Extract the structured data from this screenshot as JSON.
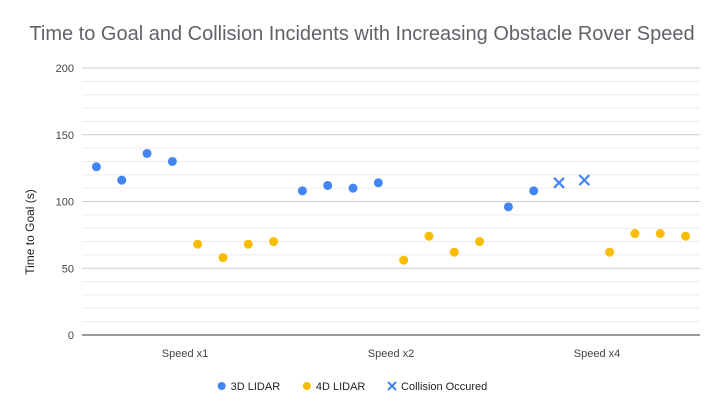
{
  "chart_data": {
    "type": "scatter",
    "title": "Time to Goal and Collision Incidents with Increasing Obstacle Rover Speed",
    "xlabel": "",
    "ylabel": "Time to Goal (s)",
    "ylim": [
      0,
      200
    ],
    "yticks": [
      0,
      50,
      100,
      150,
      200
    ],
    "categories": [
      "Speed x1",
      "Speed x2",
      "Speed x4"
    ],
    "grid": true,
    "legend_position": "bottom",
    "points_per_group": 8,
    "series": [
      {
        "name": "3D LIDAR",
        "color": "#4285f4",
        "marker": "circle",
        "points": [
          {
            "group": 0,
            "slot": 0,
            "y": 126
          },
          {
            "group": 0,
            "slot": 1,
            "y": 116
          },
          {
            "group": 0,
            "slot": 2,
            "y": 136
          },
          {
            "group": 0,
            "slot": 3,
            "y": 130
          },
          {
            "group": 1,
            "slot": 0,
            "y": 108
          },
          {
            "group": 1,
            "slot": 1,
            "y": 112
          },
          {
            "group": 1,
            "slot": 2,
            "y": 110
          },
          {
            "group": 1,
            "slot": 3,
            "y": 114
          },
          {
            "group": 2,
            "slot": 0,
            "y": 96
          },
          {
            "group": 2,
            "slot": 1,
            "y": 108
          }
        ]
      },
      {
        "name": "4D LIDAR",
        "color": "#fbbc04",
        "marker": "circle",
        "points": [
          {
            "group": 0,
            "slot": 4,
            "y": 68
          },
          {
            "group": 0,
            "slot": 5,
            "y": 58
          },
          {
            "group": 0,
            "slot": 6,
            "y": 68
          },
          {
            "group": 0,
            "slot": 7,
            "y": 70
          },
          {
            "group": 1,
            "slot": 4,
            "y": 56
          },
          {
            "group": 1,
            "slot": 5,
            "y": 74
          },
          {
            "group": 1,
            "slot": 6,
            "y": 62
          },
          {
            "group": 1,
            "slot": 7,
            "y": 70
          },
          {
            "group": 2,
            "slot": 4,
            "y": 62
          },
          {
            "group": 2,
            "slot": 5,
            "y": 76
          },
          {
            "group": 2,
            "slot": 6,
            "y": 76
          },
          {
            "group": 2,
            "slot": 7,
            "y": 74
          }
        ]
      },
      {
        "name": "Collision Occured",
        "color": "#4285f4",
        "marker": "x",
        "points": [
          {
            "group": 2,
            "slot": 2,
            "y": 114
          },
          {
            "group": 2,
            "slot": 3,
            "y": 116
          }
        ]
      }
    ]
  }
}
